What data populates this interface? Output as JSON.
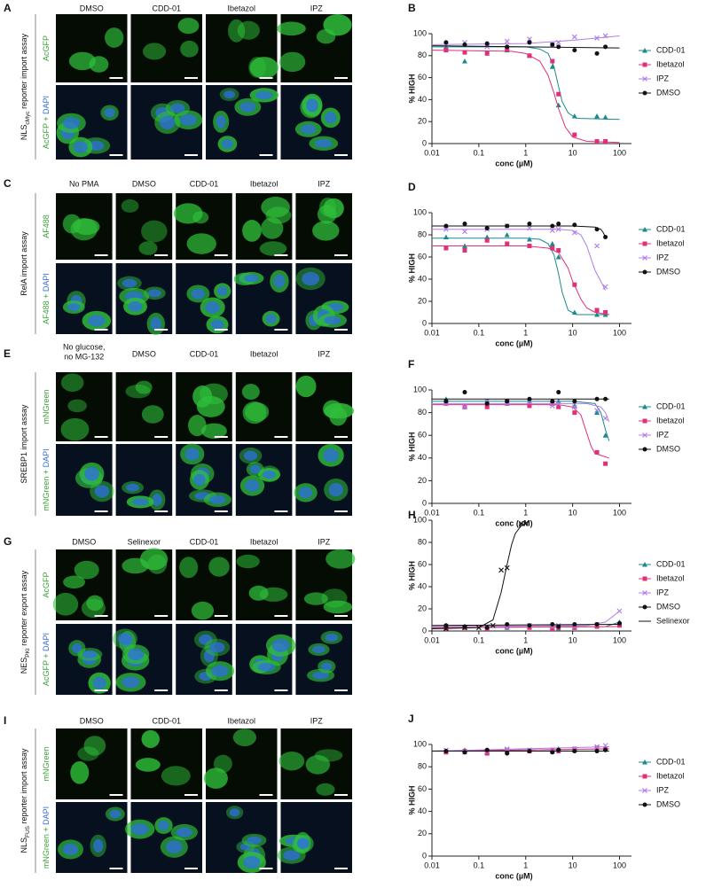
{
  "image_panels": [
    {
      "letter": "A",
      "assay": [
        {
          "text": "NLS"
        },
        {
          "text": "cMyc",
          "sub": true
        },
        {
          "text": " reporter import assay"
        }
      ],
      "columns": [
        "DMSO",
        "CDD-01",
        "Ibetazol",
        "IPZ"
      ],
      "rows": [
        [
          "AcGFP"
        ],
        [
          "AcGFP + ",
          "DAPI"
        ]
      ]
    },
    {
      "letter": "C",
      "assay": [
        {
          "text": "RelA import assay"
        }
      ],
      "columns": [
        "No PMA",
        "DMSO",
        "CDD-01",
        "Ibetazol",
        "IPZ"
      ],
      "rows": [
        [
          "AF488"
        ],
        [
          "AF488 + ",
          "DAPI"
        ]
      ]
    },
    {
      "letter": "E",
      "assay": [
        {
          "text": "SREBP1 import assay"
        }
      ],
      "columns": [
        [
          "No glucose,",
          "no MG-132"
        ],
        "DMSO",
        "CDD-01",
        "Ibetazol",
        "IPZ"
      ],
      "rows": [
        [
          "mNGreen"
        ],
        [
          "mNGreen + ",
          "DAPI"
        ]
      ]
    },
    {
      "letter": "G",
      "assay": [
        {
          "text": "NES"
        },
        {
          "text": "PKI",
          "sub": true
        },
        {
          "text": " reporter export assay"
        }
      ],
      "columns": [
        "DMSO",
        "Selinexor",
        "CDD-01",
        "Ibetazol",
        "IPZ"
      ],
      "rows": [
        [
          "AcGFP"
        ],
        [
          "AcGFP + ",
          "DAPI"
        ]
      ]
    },
    {
      "letter": "I",
      "assay": [
        {
          "text": "NLS"
        },
        {
          "text": "FUS",
          "sub": true
        },
        {
          "text": " reporter import assay"
        }
      ],
      "columns": [
        "DMSO",
        "CDD-01",
        "Ibetazol",
        "IPZ"
      ],
      "rows": [
        [
          "mNGreen"
        ],
        [
          "mNGreen + ",
          "DAPI"
        ]
      ]
    }
  ],
  "chart_data": [
    {
      "letter": "B",
      "type": "scatter",
      "xlabel": "conc (µM)",
      "ylabel": "% HIGH",
      "xscale": "log",
      "xlim": [
        0.01,
        180
      ],
      "xticks": [
        0.01,
        0.1,
        1,
        10,
        100
      ],
      "ylim": [
        0,
        100
      ],
      "yticks": [
        0,
        20,
        40,
        60,
        80,
        100
      ],
      "x": [
        0.02,
        0.05,
        0.15,
        0.4,
        1.2,
        3.7,
        5,
        11,
        33,
        50
      ],
      "series": [
        {
          "name": "CDD-01",
          "color": "#1a8a8a",
          "marker": "triangle",
          "values": [
            88,
            75,
            90,
            85,
            80,
            70,
            35,
            25,
            25,
            24
          ],
          "fit": {
            "x": [
              0.01,
              1,
              2,
              3,
              4,
              5,
              6,
              8,
              12,
              100
            ],
            "values": [
              88,
              88,
              86,
              82,
              70,
              52,
              38,
              28,
              23,
              22
            ]
          }
        },
        {
          "name": "Ibetazol",
          "color": "#e0307a",
          "marker": "square",
          "values": [
            85,
            83,
            82,
            86,
            80,
            75,
            45,
            8,
            2,
            2
          ],
          "fit": {
            "x": [
              0.01,
              0.5,
              1,
              2,
              3,
              4,
              5,
              7,
              10,
              20,
              100
            ],
            "values": [
              85,
              84,
              82,
              75,
              62,
              46,
              32,
              15,
              6,
              2,
              1
            ]
          }
        },
        {
          "name": "IPZ",
          "color": "#b07ee8",
          "marker": "x",
          "values": [
            90,
            92,
            88,
            93,
            95,
            90,
            92,
            97,
            96,
            98
          ],
          "fit": {
            "x": [
              0.01,
              1,
              10,
              100
            ],
            "values": [
              90,
              91,
              94,
              98
            ]
          }
        },
        {
          "name": "DMSO",
          "color": "#111111",
          "marker": "circle",
          "values": [
            92,
            90,
            91,
            88,
            92,
            90,
            88,
            85,
            82,
            88
          ],
          "fit": {
            "x": [
              0.01,
              100
            ],
            "values": [
              89,
              87
            ]
          }
        }
      ]
    },
    {
      "letter": "D",
      "type": "scatter",
      "xlabel": "conc (µM)",
      "ylabel": "% HIGH",
      "xscale": "log",
      "xlim": [
        0.01,
        180
      ],
      "xticks": [
        0.01,
        0.1,
        1,
        10,
        100
      ],
      "ylim": [
        0,
        100
      ],
      "yticks": [
        0,
        20,
        40,
        60,
        80,
        100
      ],
      "x": [
        0.02,
        0.05,
        0.15,
        0.4,
        1.2,
        3.7,
        5,
        11,
        33,
        50
      ],
      "series": [
        {
          "name": "CDD-01",
          "color": "#1a8a8a",
          "marker": "triangle",
          "values": [
            78,
            70,
            78,
            80,
            76,
            72,
            60,
            10,
            8,
            8
          ],
          "fit": {
            "x": [
              0.01,
              1,
              2,
              3,
              4,
              5,
              6,
              8,
              12,
              60
            ],
            "values": [
              77,
              77,
              76,
              72,
              62,
              45,
              28,
              12,
              8,
              8
            ]
          }
        },
        {
          "name": "Ibetazol",
          "color": "#e0307a",
          "marker": "square",
          "values": [
            68,
            66,
            75,
            72,
            70,
            68,
            66,
            35,
            12,
            10
          ],
          "fit": {
            "x": [
              0.01,
              1,
              3,
              5,
              8,
              10,
              15,
              20,
              30,
              60
            ],
            "values": [
              70,
              70,
              68,
              64,
              50,
              38,
              22,
              14,
              10,
              8
            ]
          }
        },
        {
          "name": "IPZ",
          "color": "#b07ee8",
          "marker": "x",
          "values": [
            85,
            83,
            85,
            88,
            86,
            84,
            85,
            82,
            70,
            33
          ],
          "fit": {
            "x": [
              0.01,
              5,
              10,
              15,
              20,
              30,
              40,
              50
            ],
            "values": [
              85,
              85,
              84,
              80,
              70,
              48,
              38,
              30
            ]
          }
        },
        {
          "name": "DMSO",
          "color": "#111111",
          "marker": "circle",
          "values": [
            88,
            90,
            86,
            88,
            90,
            88,
            90,
            89,
            85,
            78
          ],
          "fit": {
            "x": [
              0.01,
              10,
              30,
              40,
              45,
              50
            ],
            "values": [
              88,
              88,
              87,
              85,
              82,
              78
            ]
          }
        }
      ]
    },
    {
      "letter": "F",
      "type": "scatter",
      "xlabel": "conc (µM)",
      "ylabel": "% HIGH",
      "xscale": "log",
      "xlim": [
        0.01,
        180
      ],
      "xticks": [
        0.01,
        0.1,
        1,
        10,
        100
      ],
      "ylim": [
        0,
        100
      ],
      "yticks": [
        0,
        20,
        40,
        60,
        80,
        100
      ],
      "x": [
        0.02,
        0.05,
        0.15,
        0.4,
        1.2,
        3.7,
        5,
        11,
        33,
        50
      ],
      "series": [
        {
          "name": "CDD-01",
          "color": "#1a8a8a",
          "marker": "triangle",
          "values": [
            92,
            85,
            90,
            88,
            90,
            88,
            90,
            86,
            80,
            60
          ],
          "fit": {
            "x": [
              0.01,
              10,
              30,
              40,
              50,
              60
            ],
            "values": [
              90,
              90,
              88,
              80,
              65,
              55
            ]
          }
        },
        {
          "name": "Ibetazol",
          "color": "#e0307a",
          "marker": "square",
          "values": [
            88,
            85,
            85,
            90,
            86,
            88,
            85,
            80,
            45,
            35
          ],
          "fit": {
            "x": [
              0.01,
              5,
              10,
              15,
              20,
              25,
              30,
              50,
              60
            ],
            "values": [
              87,
              87,
              85,
              78,
              62,
              50,
              44,
              41,
              40
            ]
          }
        },
        {
          "name": "IPZ",
          "color": "#b07ee8",
          "marker": "x",
          "values": [
            88,
            85,
            90,
            88,
            90,
            86,
            88,
            85,
            82,
            75
          ],
          "fit": {
            "x": [
              0.01,
              20,
              40,
              50,
              60
            ],
            "values": [
              88,
              88,
              85,
              80,
              72
            ]
          }
        },
        {
          "name": "DMSO",
          "color": "#111111",
          "marker": "circle",
          "values": [
            90,
            98,
            88,
            90,
            92,
            90,
            98,
            90,
            92,
            92
          ],
          "fit": {
            "x": [
              0.01,
              60
            ],
            "values": [
              92,
              92
            ]
          }
        }
      ]
    },
    {
      "letter": "H",
      "type": "scatter",
      "xlabel": "conc (µM)",
      "ylabel": "% HIGH",
      "xscale": "log",
      "xlim": [
        0.01,
        180
      ],
      "xticks": [
        0.01,
        0.1,
        1,
        10,
        100
      ],
      "ylim": [
        0,
        100
      ],
      "yticks": [
        0,
        20,
        40,
        60,
        80,
        100
      ],
      "x": [
        0.02,
        0.05,
        0.15,
        0.4,
        1.2,
        3.7,
        5,
        11,
        33,
        100
      ],
      "series": [
        {
          "name": "CDD-01",
          "color": "#1a8a8a",
          "marker": "triangle",
          "values": [
            3,
            4,
            2,
            3,
            4,
            3,
            2,
            3,
            5,
            8
          ],
          "fit": {
            "x": [
              0.01,
              50,
              100
            ],
            "values": [
              3,
              4,
              8
            ]
          }
        },
        {
          "name": "Ibetazol",
          "color": "#e0307a",
          "marker": "square",
          "values": [
            2,
            3,
            2,
            4,
            3,
            2,
            3,
            3,
            4,
            5
          ],
          "fit": {
            "x": [
              0.01,
              100
            ],
            "values": [
              3,
              4
            ]
          }
        },
        {
          "name": "IPZ",
          "color": "#b07ee8",
          "marker": "x",
          "values": [
            4,
            3,
            4,
            3,
            5,
            4,
            5,
            4,
            6,
            18
          ],
          "fit": {
            "x": [
              0.01,
              20,
              50,
              100
            ],
            "values": [
              4,
              5,
              8,
              18
            ]
          }
        },
        {
          "name": "DMSO",
          "color": "#111111",
          "marker": "circle",
          "values": [
            5,
            4,
            3,
            6,
            5,
            6,
            4,
            6,
            6,
            7
          ],
          "fit": {
            "x": [
              0.01,
              100
            ],
            "values": [
              5,
              6
            ]
          }
        },
        {
          "name": "Selinexor",
          "color": "#111111",
          "marker": "x",
          "x": [
            0.02,
            0.05,
            0.1,
            0.2,
            0.3,
            0.4,
            0.8,
            1
          ],
          "values": [
            2,
            3,
            3,
            5,
            55,
            57,
            97,
            97
          ],
          "fit": {
            "x": [
              0.01,
              0.1,
              0.2,
              0.3,
              0.4,
              0.5,
              0.6,
              0.8,
              1
            ],
            "values": [
              2,
              3,
              10,
              35,
              60,
              78,
              88,
              95,
              97
            ]
          }
        }
      ]
    },
    {
      "letter": "J",
      "type": "scatter",
      "xlabel": "conc (µM)",
      "ylabel": "% HIGH",
      "xscale": "log",
      "xlim": [
        0.01,
        180
      ],
      "xticks": [
        0.01,
        0.1,
        1,
        10,
        100
      ],
      "ylim": [
        0,
        100
      ],
      "yticks": [
        0,
        20,
        40,
        60,
        80,
        100
      ],
      "x": [
        0.02,
        0.05,
        0.15,
        0.4,
        1.2,
        3.7,
        5,
        11,
        33,
        50
      ],
      "series": [
        {
          "name": "CDD-01",
          "color": "#1a8a8a",
          "marker": "triangle",
          "values": [
            94,
            95,
            93,
            94,
            95,
            94,
            96,
            95,
            96,
            97
          ],
          "fit": {
            "x": [
              0.01,
              60
            ],
            "values": [
              94,
              96
            ]
          }
        },
        {
          "name": "Ibetazol",
          "color": "#e0307a",
          "marker": "square",
          "values": [
            93,
            94,
            92,
            95,
            94,
            95,
            94,
            96,
            97,
            96
          ],
          "fit": {
            "x": [
              0.01,
              60
            ],
            "values": [
              94,
              96
            ]
          }
        },
        {
          "name": "IPZ",
          "color": "#b07ee8",
          "marker": "x",
          "values": [
            95,
            93,
            94,
            96,
            95,
            94,
            95,
            96,
            98,
            99
          ],
          "fit": {
            "x": [
              0.01,
              60
            ],
            "values": [
              94,
              98
            ]
          }
        },
        {
          "name": "DMSO",
          "color": "#111111",
          "marker": "circle",
          "values": [
            94,
            93,
            95,
            92,
            94,
            93,
            95,
            94,
            94,
            95
          ],
          "fit": {
            "x": [
              0.01,
              60
            ],
            "values": [
              94,
              94
            ]
          }
        }
      ]
    }
  ]
}
